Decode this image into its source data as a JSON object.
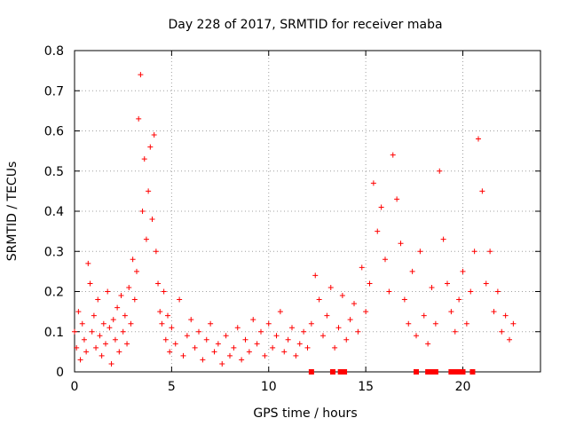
{
  "chart_data": {
    "type": "scatter",
    "title": "Day 228 of 2017, SRMTID for receiver maba",
    "xlabel": "GPS time / hours",
    "ylabel": "SRMTID / TECUs",
    "xlim": [
      0,
      24
    ],
    "ylim": [
      0,
      0.8
    ],
    "x_ticks": [
      0,
      5,
      10,
      15,
      20
    ],
    "x_tick_labels": [
      "0",
      "5",
      "10",
      "15",
      "20"
    ],
    "y_ticks": [
      0,
      0.1,
      0.2,
      0.3,
      0.4,
      0.5,
      0.6,
      0.7,
      0.8
    ],
    "y_tick_labels": [
      "0",
      "0.1",
      "0.2",
      "0.3",
      "0.4",
      "0.5",
      "0.6",
      "0.7",
      "0.8"
    ],
    "grid": true,
    "marker": "plus",
    "color": "#ff0000",
    "series": [
      {
        "name": "SRMTID",
        "x": [
          0.0,
          0.1,
          0.2,
          0.3,
          0.4,
          0.5,
          0.6,
          0.7,
          0.8,
          0.9,
          1.0,
          1.1,
          1.2,
          1.3,
          1.4,
          1.5,
          1.6,
          1.7,
          1.8,
          1.9,
          2.0,
          2.1,
          2.2,
          2.3,
          2.4,
          2.5,
          2.6,
          2.7,
          2.8,
          2.9,
          3.0,
          3.1,
          3.2,
          3.3,
          3.4,
          3.5,
          3.6,
          3.7,
          3.8,
          3.9,
          4.0,
          4.1,
          4.2,
          4.3,
          4.4,
          4.5,
          4.6,
          4.7,
          4.8,
          4.9,
          5.0,
          5.2,
          5.4,
          5.6,
          5.8,
          6.0,
          6.2,
          6.4,
          6.6,
          6.8,
          7.0,
          7.2,
          7.4,
          7.6,
          7.8,
          8.0,
          8.2,
          8.4,
          8.6,
          8.8,
          9.0,
          9.2,
          9.4,
          9.6,
          9.8,
          10.0,
          10.2,
          10.4,
          10.6,
          10.8,
          11.0,
          11.2,
          11.4,
          11.6,
          11.8,
          12.0,
          12.2,
          12.4,
          12.6,
          12.8,
          13.0,
          13.2,
          13.4,
          13.6,
          13.8,
          14.0,
          14.2,
          14.4,
          14.6,
          14.8,
          15.0,
          15.2,
          15.4,
          15.6,
          15.8,
          16.0,
          16.2,
          16.4,
          16.6,
          16.8,
          17.0,
          17.2,
          17.4,
          17.6,
          17.8,
          18.0,
          18.2,
          18.4,
          18.6,
          18.8,
          19.0,
          19.2,
          19.4,
          19.6,
          19.8,
          20.0,
          20.2,
          20.4,
          20.6,
          20.8,
          21.0,
          21.2,
          21.4,
          21.6,
          21.8,
          22.0,
          22.2,
          22.4,
          22.6
        ],
        "y": [
          0.1,
          0.06,
          0.15,
          0.03,
          0.12,
          0.08,
          0.05,
          0.27,
          0.22,
          0.1,
          0.14,
          0.06,
          0.18,
          0.09,
          0.04,
          0.12,
          0.07,
          0.2,
          0.11,
          0.02,
          0.13,
          0.08,
          0.16,
          0.05,
          0.19,
          0.1,
          0.14,
          0.07,
          0.21,
          0.12,
          0.28,
          0.18,
          0.25,
          0.63,
          0.74,
          0.4,
          0.53,
          0.33,
          0.45,
          0.56,
          0.38,
          0.59,
          0.3,
          0.22,
          0.15,
          0.12,
          0.2,
          0.08,
          0.14,
          0.05,
          0.11,
          0.07,
          0.18,
          0.04,
          0.09,
          0.13,
          0.06,
          0.1,
          0.03,
          0.08,
          0.12,
          0.05,
          0.07,
          0.02,
          0.09,
          0.04,
          0.06,
          0.11,
          0.03,
          0.08,
          0.05,
          0.13,
          0.07,
          0.1,
          0.04,
          0.12,
          0.06,
          0.09,
          0.15,
          0.05,
          0.08,
          0.11,
          0.04,
          0.07,
          0.1,
          0.06,
          0.12,
          0.24,
          0.18,
          0.09,
          0.14,
          0.21,
          0.06,
          0.11,
          0.19,
          0.08,
          0.13,
          0.17,
          0.1,
          0.26,
          0.15,
          0.22,
          0.47,
          0.35,
          0.41,
          0.28,
          0.2,
          0.54,
          0.43,
          0.32,
          0.18,
          0.12,
          0.25,
          0.09,
          0.3,
          0.14,
          0.07,
          0.21,
          0.12,
          0.5,
          0.33,
          0.22,
          0.15,
          0.1,
          0.18,
          0.25,
          0.12,
          0.2,
          0.3,
          0.58,
          0.45,
          0.22,
          0.3,
          0.15,
          0.2,
          0.1,
          0.14,
          0.08,
          0.12
        ],
        "flags_at_zero_x": [
          12.2,
          13.3,
          13.7,
          13.9,
          17.6,
          18.2,
          18.4,
          18.6,
          19.4,
          19.6,
          19.8,
          20.0,
          20.5
        ]
      }
    ]
  }
}
